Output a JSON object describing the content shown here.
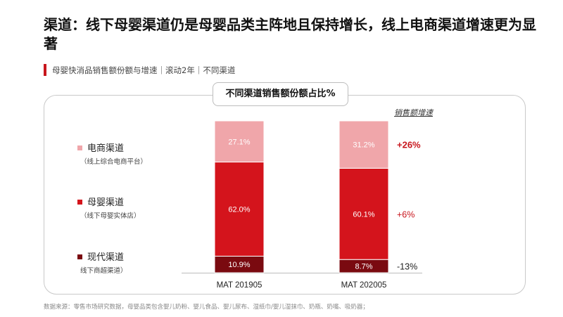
{
  "title": "渠道：线下母婴渠道仍是母婴品类主阵地且保持增长，线上电商渠道增速更为显著",
  "subtitle": "母婴快消品销售额份额与增速｜滚动2年｜不同渠道",
  "chart_title": "不同渠道销售额份额占比%",
  "growth_header": "销售额增速",
  "source": "数据来源：零售市场研究数据，母婴品类包含婴儿奶粉、婴儿食品、婴儿尿布、湿纸巾/婴儿湿抹巾、奶瓶、奶嘴、吸奶器；",
  "colors": {
    "ecommerce": "#f0a6aa",
    "maternity": "#d4141c",
    "modern": "#7a0a10",
    "growth_positive": "#c8161d",
    "growth_negative": "#222222"
  },
  "legend": [
    {
      "name": "电商渠道",
      "note": "（线上综合电商平台）"
    },
    {
      "name": "母婴渠道",
      "note": "（线下母婴实体店）"
    },
    {
      "name": "现代渠道",
      "note": "线下商超渠道）"
    }
  ],
  "chart_data": {
    "type": "bar",
    "stacked": true,
    "title": "不同渠道销售额份额占比%",
    "categories": [
      "MAT 201905",
      "MAT 202005"
    ],
    "series": [
      {
        "name": "现代渠道",
        "values": [
          10.9,
          8.7
        ],
        "labels": [
          "10.9%",
          "8.7%"
        ]
      },
      {
        "name": "母婴渠道",
        "values": [
          62.0,
          60.1
        ],
        "labels": [
          "62.0%",
          "60.1%"
        ]
      },
      {
        "name": "电商渠道",
        "values": [
          27.1,
          31.2
        ],
        "labels": [
          "27.1%",
          "31.2%"
        ]
      }
    ],
    "growth": {
      "电商渠道": "+26%",
      "母婴渠道": "+6%",
      "现代渠道": "-13%"
    },
    "ylim": [
      0,
      100
    ]
  }
}
